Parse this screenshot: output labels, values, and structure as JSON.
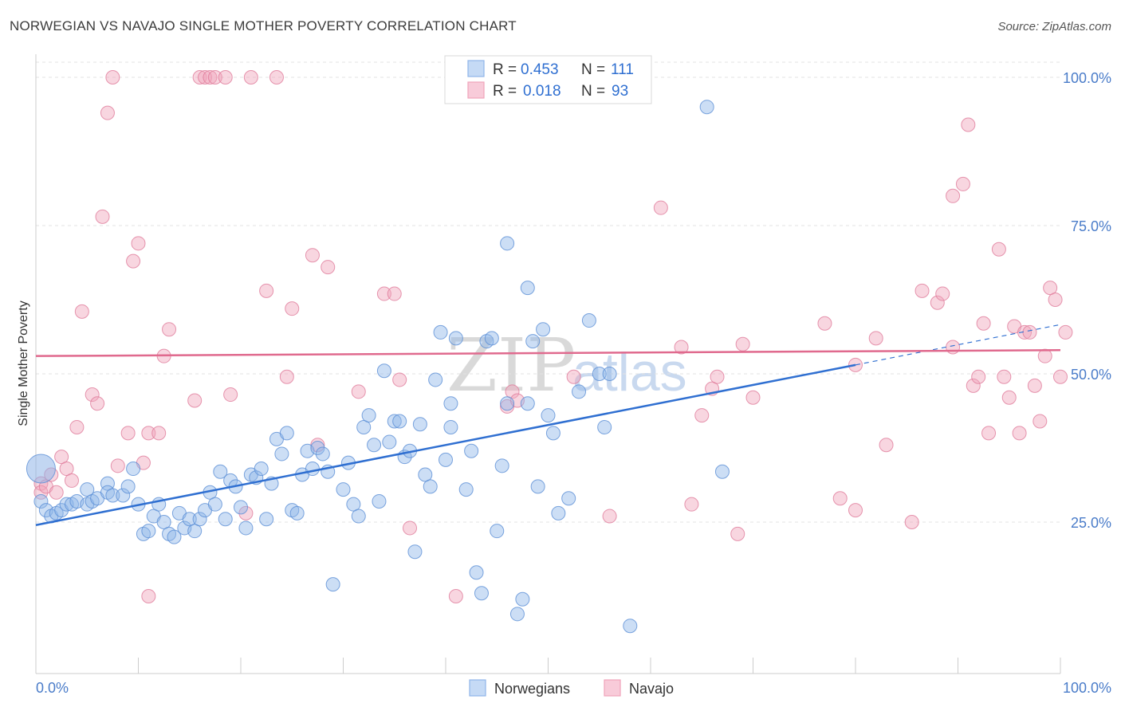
{
  "title": "NORWEGIAN VS NAVAJO SINGLE MOTHER POVERTY CORRELATION CHART",
  "source": "Source: ZipAtlas.com",
  "watermark": {
    "zip": "ZIP",
    "atlas": "atlas"
  },
  "legend_box": {
    "rows": [
      {
        "r_label": "R =",
        "r_value": "0.453",
        "n_label": "N =",
        "n_value": "111",
        "color": "#8fb5e8"
      },
      {
        "r_label": "R =",
        "r_value": "0.018",
        "n_label": "N =",
        "n_value": "93",
        "color": "#f0a3ba"
      }
    ]
  },
  "bottom_legend": [
    {
      "label": "Norwegians",
      "color": "#8fb5e8"
    },
    {
      "label": "Navajo",
      "color": "#f0a3ba"
    }
  ],
  "chart_data": {
    "type": "scatter",
    "title": "NORWEGIAN VS NAVAJO SINGLE MOTHER POVERTY CORRELATION CHART",
    "xlabel": "",
    "ylabel": "Single Mother Poverty",
    "xlim": [
      0,
      100
    ],
    "ylim": [
      0,
      105
    ],
    "x_tick_labels": [
      "0.0%",
      "100.0%"
    ],
    "y_ticks": [
      25,
      50,
      75,
      100
    ],
    "y_tick_labels": [
      "25.0%",
      "50.0%",
      "75.0%",
      "100.0%"
    ],
    "grid": true,
    "legend_position": "top-center",
    "series": [
      {
        "name": "Norwegians",
        "color": "#8fb5e8",
        "edge_color": "#5b8fd6",
        "trend": {
          "x0": 0,
          "y0": 24.5,
          "x1": 80,
          "y1": 51.5,
          "dashed_to_x": 100,
          "dashed_to_y": 58.3,
          "color": "#2f6fd1"
        },
        "points": [
          [
            0.5,
            34.0
          ],
          [
            0.5,
            28.5
          ],
          [
            1.0,
            27.0
          ],
          [
            1.5,
            26.0
          ],
          [
            2.0,
            26.5
          ],
          [
            2.5,
            27.0
          ],
          [
            3.0,
            28.0
          ],
          [
            3.5,
            28.0
          ],
          [
            4.0,
            28.5
          ],
          [
            5.0,
            28.0
          ],
          [
            5.0,
            30.5
          ],
          [
            5.5,
            28.5
          ],
          [
            6.0,
            29.0
          ],
          [
            7.0,
            31.5
          ],
          [
            7.0,
            30.0
          ],
          [
            7.5,
            29.5
          ],
          [
            8.5,
            29.5
          ],
          [
            9.0,
            31.0
          ],
          [
            9.5,
            34.0
          ],
          [
            10.0,
            28.0
          ],
          [
            10.5,
            23.0
          ],
          [
            11.0,
            23.5
          ],
          [
            11.5,
            26.0
          ],
          [
            12.0,
            28.0
          ],
          [
            12.5,
            25.0
          ],
          [
            13.0,
            23.0
          ],
          [
            13.5,
            22.5
          ],
          [
            14.0,
            26.5
          ],
          [
            14.5,
            24.0
          ],
          [
            15.0,
            25.5
          ],
          [
            15.5,
            23.5
          ],
          [
            16.0,
            25.5
          ],
          [
            16.5,
            27.0
          ],
          [
            17.0,
            30.0
          ],
          [
            17.5,
            28.0
          ],
          [
            18.0,
            33.5
          ],
          [
            18.5,
            25.5
          ],
          [
            19.0,
            32.0
          ],
          [
            19.5,
            31.0
          ],
          [
            20.0,
            27.5
          ],
          [
            20.5,
            24.0
          ],
          [
            21.0,
            33.0
          ],
          [
            21.5,
            32.5
          ],
          [
            22.0,
            34.0
          ],
          [
            22.5,
            25.5
          ],
          [
            23.0,
            31.5
          ],
          [
            23.5,
            39.0
          ],
          [
            24.0,
            36.5
          ],
          [
            24.5,
            40.0
          ],
          [
            25.0,
            27.0
          ],
          [
            25.5,
            26.5
          ],
          [
            26.0,
            33.0
          ],
          [
            26.5,
            37.0
          ],
          [
            27.0,
            34.0
          ],
          [
            27.5,
            37.5
          ],
          [
            28.0,
            36.5
          ],
          [
            28.5,
            33.5
          ],
          [
            29.0,
            14.5
          ],
          [
            30.0,
            30.5
          ],
          [
            30.5,
            35.0
          ],
          [
            31.0,
            28.0
          ],
          [
            31.5,
            26.0
          ],
          [
            32.0,
            41.0
          ],
          [
            32.5,
            43.0
          ],
          [
            33.0,
            38.0
          ],
          [
            33.5,
            28.5
          ],
          [
            34.0,
            50.5
          ],
          [
            34.5,
            38.5
          ],
          [
            35.0,
            42.0
          ],
          [
            35.5,
            42.0
          ],
          [
            36.0,
            36.0
          ],
          [
            36.5,
            37.0
          ],
          [
            37.0,
            20.0
          ],
          [
            37.5,
            41.5
          ],
          [
            38.0,
            33.0
          ],
          [
            38.5,
            31.0
          ],
          [
            39.0,
            49.0
          ],
          [
            39.5,
            57.0
          ],
          [
            40.0,
            35.5
          ],
          [
            40.5,
            41.0
          ],
          [
            40.5,
            45.0
          ],
          [
            41.0,
            56.0
          ],
          [
            42.0,
            30.5
          ],
          [
            42.5,
            37.0
          ],
          [
            43.0,
            16.5
          ],
          [
            43.5,
            13.0
          ],
          [
            44.0,
            55.5
          ],
          [
            44.5,
            56.0
          ],
          [
            45.0,
            23.5
          ],
          [
            45.5,
            34.5
          ],
          [
            46.0,
            72.0
          ],
          [
            46.0,
            45.0
          ],
          [
            47.0,
            9.5
          ],
          [
            47.5,
            12.0
          ],
          [
            48.0,
            64.5
          ],
          [
            48.5,
            55.5
          ],
          [
            49.0,
            31.0
          ],
          [
            49.5,
            57.5
          ],
          [
            50.0,
            43.0
          ],
          [
            50.5,
            40.0
          ],
          [
            51.0,
            26.5
          ],
          [
            52.0,
            29.0
          ],
          [
            53.0,
            47.0
          ],
          [
            54.0,
            59.0
          ],
          [
            55.0,
            50.0
          ],
          [
            55.5,
            41.0
          ],
          [
            56.0,
            50.0
          ],
          [
            58.0,
            7.5
          ],
          [
            65.5,
            95.0
          ],
          [
            67.0,
            33.5
          ],
          [
            48.0,
            45.0
          ]
        ]
      },
      {
        "name": "Navajo",
        "color": "#f0a3ba",
        "edge_color": "#e07c9b",
        "trend": {
          "x0": 0,
          "y0": 53.0,
          "x1": 100,
          "y1": 54.0,
          "color": "#e06a8e"
        },
        "points": [
          [
            0.5,
            31.5
          ],
          [
            0.5,
            30.0
          ],
          [
            1.0,
            31.0
          ],
          [
            1.5,
            33.0
          ],
          [
            2.0,
            30.0
          ],
          [
            2.5,
            36.0
          ],
          [
            3.0,
            34.0
          ],
          [
            3.5,
            32.0
          ],
          [
            4.0,
            41.0
          ],
          [
            4.5,
            60.5
          ],
          [
            5.5,
            46.5
          ],
          [
            6.0,
            45.0
          ],
          [
            6.5,
            76.5
          ],
          [
            7.0,
            94.0
          ],
          [
            7.5,
            100.0
          ],
          [
            8.0,
            34.5
          ],
          [
            9.0,
            40.0
          ],
          [
            9.5,
            69.0
          ],
          [
            10.0,
            72.0
          ],
          [
            10.5,
            35.0
          ],
          [
            11.0,
            40.0
          ],
          [
            11.0,
            12.5
          ],
          [
            12.0,
            40.0
          ],
          [
            12.5,
            53.0
          ],
          [
            13.0,
            57.5
          ],
          [
            15.5,
            45.5
          ],
          [
            16.0,
            100.0
          ],
          [
            16.5,
            100.0
          ],
          [
            17.0,
            100.0
          ],
          [
            17.5,
            100.0
          ],
          [
            18.5,
            100.0
          ],
          [
            19.0,
            46.5
          ],
          [
            20.5,
            26.5
          ],
          [
            21.0,
            100.0
          ],
          [
            22.5,
            64.0
          ],
          [
            23.5,
            100.0
          ],
          [
            24.5,
            49.5
          ],
          [
            25.0,
            61.0
          ],
          [
            27.0,
            70.0
          ],
          [
            27.5,
            38.0
          ],
          [
            28.5,
            68.0
          ],
          [
            31.5,
            47.0
          ],
          [
            34.0,
            63.5
          ],
          [
            35.0,
            63.5
          ],
          [
            35.5,
            49.0
          ],
          [
            36.5,
            24.0
          ],
          [
            41.0,
            12.5
          ],
          [
            46.0,
            44.5
          ],
          [
            46.5,
            47.0
          ],
          [
            47.0,
            45.5
          ],
          [
            52.5,
            49.5
          ],
          [
            56.0,
            26.0
          ],
          [
            61.0,
            78.0
          ],
          [
            63.0,
            54.5
          ],
          [
            64.0,
            28.0
          ],
          [
            65.0,
            43.0
          ],
          [
            66.0,
            47.5
          ],
          [
            66.5,
            49.5
          ],
          [
            68.5,
            23.0
          ],
          [
            69.0,
            55.0
          ],
          [
            70.0,
            46.0
          ],
          [
            77.0,
            58.5
          ],
          [
            78.5,
            29.0
          ],
          [
            80.0,
            51.5
          ],
          [
            80.0,
            27.0
          ],
          [
            82.0,
            56.0
          ],
          [
            83.0,
            38.0
          ],
          [
            85.5,
            25.0
          ],
          [
            86.5,
            64.0
          ],
          [
            88.0,
            62.0
          ],
          [
            88.5,
            63.5
          ],
          [
            89.5,
            80.0
          ],
          [
            89.5,
            54.5
          ],
          [
            90.5,
            82.0
          ],
          [
            91.0,
            92.0
          ],
          [
            91.5,
            48.0
          ],
          [
            92.0,
            49.5
          ],
          [
            92.5,
            58.5
          ],
          [
            93.0,
            40.0
          ],
          [
            94.0,
            71.0
          ],
          [
            94.5,
            49.5
          ],
          [
            95.0,
            46.0
          ],
          [
            95.5,
            58.0
          ],
          [
            96.0,
            40.0
          ],
          [
            96.5,
            57.0
          ],
          [
            97.0,
            57.0
          ],
          [
            97.5,
            48.0
          ],
          [
            98.0,
            42.0
          ],
          [
            98.5,
            53.0
          ],
          [
            99.0,
            64.5
          ],
          [
            99.5,
            62.5
          ],
          [
            100.0,
            49.5
          ],
          [
            100.5,
            57.0
          ]
        ]
      }
    ]
  }
}
